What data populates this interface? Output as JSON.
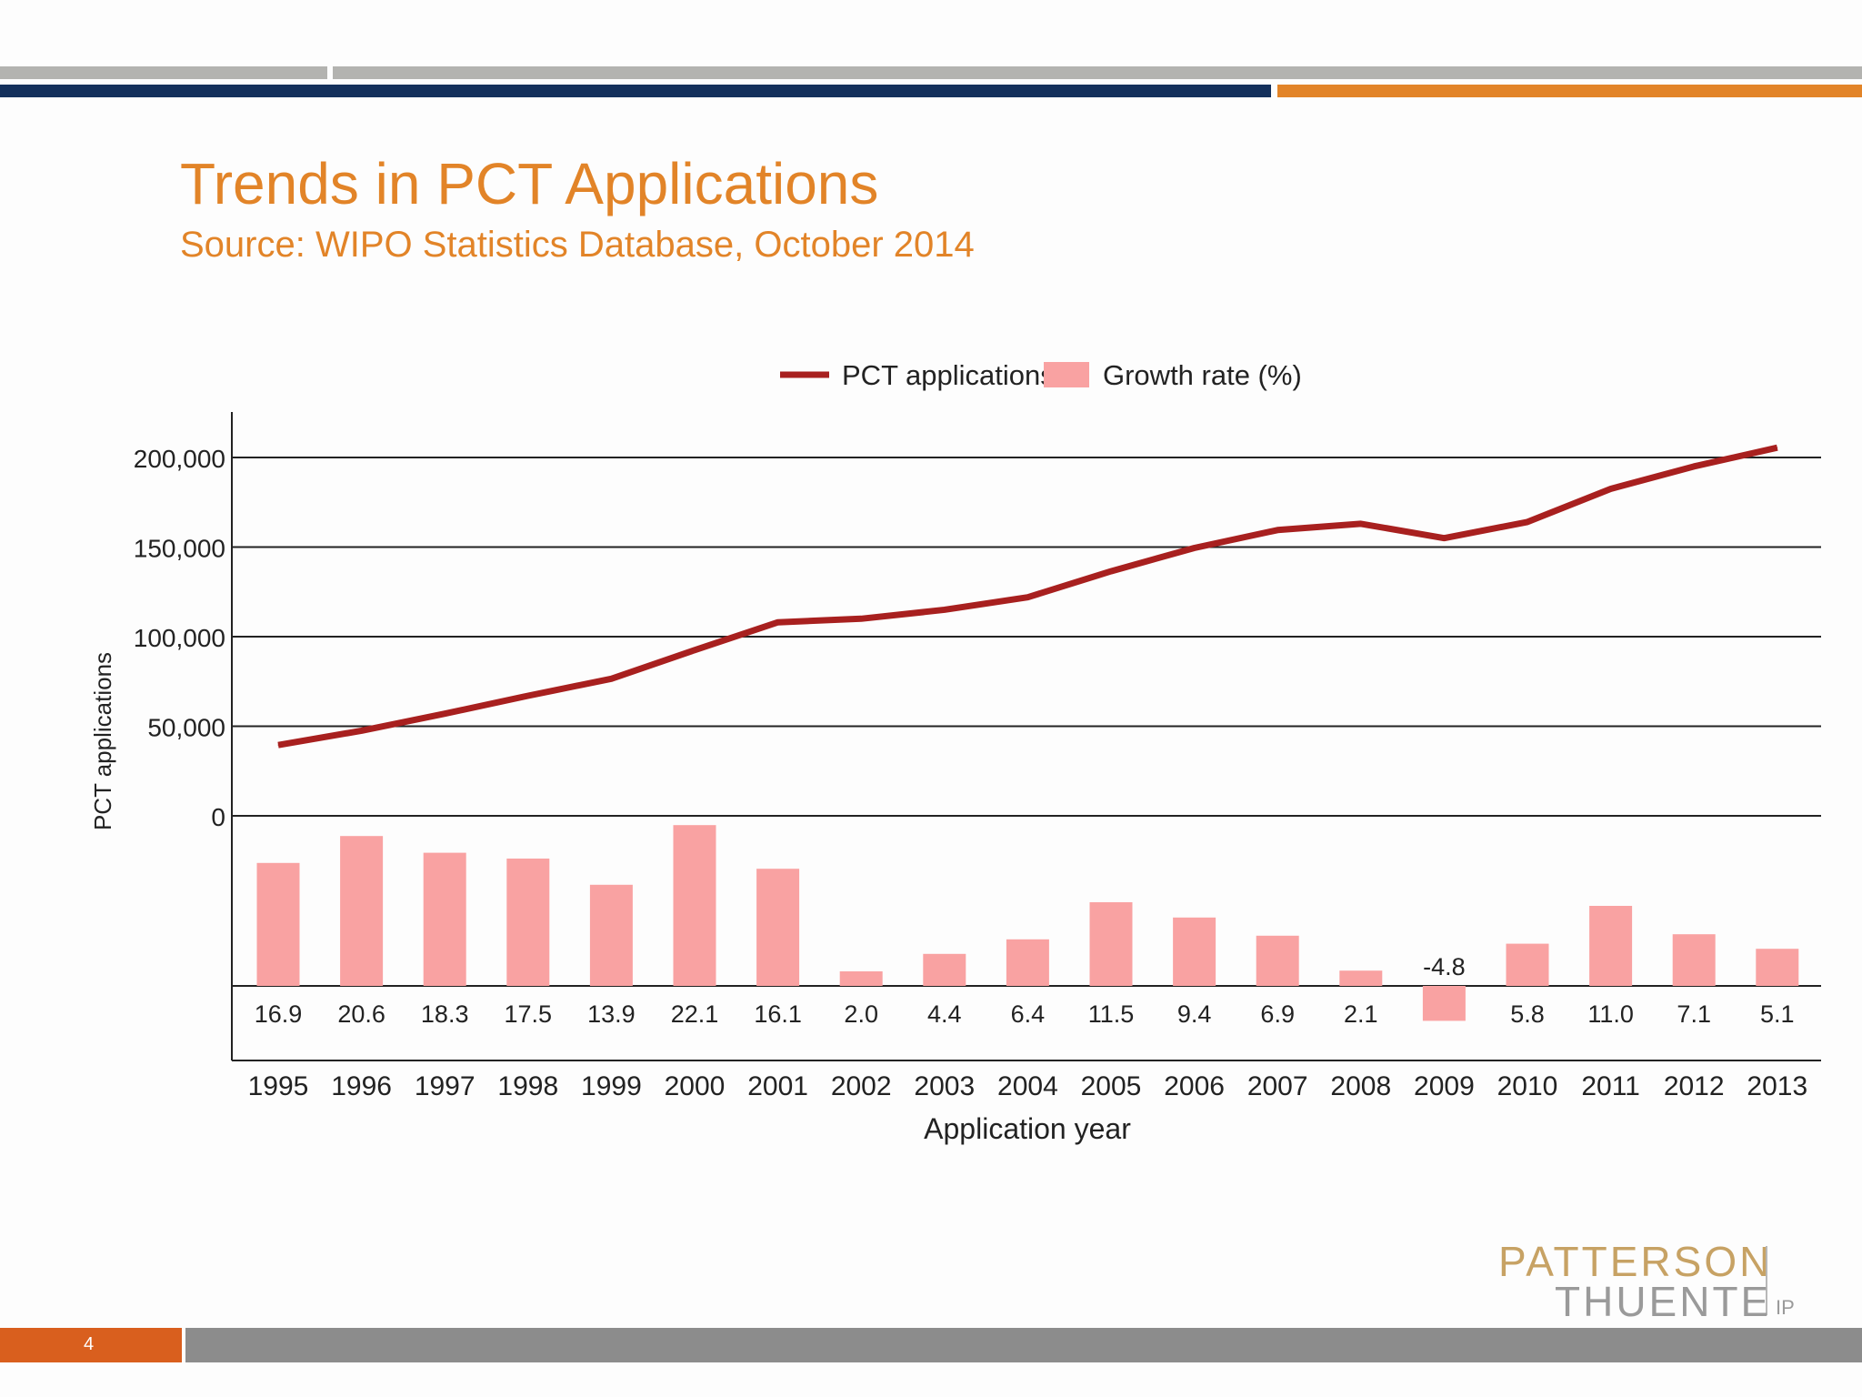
{
  "slide": {
    "title": "Trends in PCT Applications",
    "subtitle": "Source:  WIPO Statistics Database, October 2014",
    "slide_number": "4",
    "logo_line1": "PATTERSON",
    "logo_line2": "THUENTE",
    "logo_suffix": "IP"
  },
  "colors": {
    "accent_orange": "#e28428",
    "accent_navy": "#14305c",
    "line_series": "#a8201f",
    "bar_series": "#f9a2a2",
    "top_gray": "#b3b3b0"
  },
  "chart_data": {
    "type": "bar+line",
    "xlabel": "Application year",
    "ylabel": "PCT applications",
    "categories": [
      "1995",
      "1996",
      "1997",
      "1998",
      "1999",
      "2000",
      "2001",
      "2002",
      "2003",
      "2004",
      "2005",
      "2006",
      "2007",
      "2008",
      "2009",
      "2010",
      "2011",
      "2012",
      "2013"
    ],
    "y_ticks": [
      "0",
      "50,000",
      "100,000",
      "150,000",
      "200,000"
    ],
    "ylim": [
      0,
      210000
    ],
    "grid": "horizontal",
    "legend_placement": "top-center",
    "series": [
      {
        "name": "PCT applications",
        "type": "line",
        "values": [
          39500,
          47500,
          57000,
          67000,
          76500,
          92500,
          108000,
          110000,
          115000,
          122000,
          136500,
          149500,
          159500,
          163000,
          155000,
          164000,
          182500,
          195000,
          205500
        ]
      },
      {
        "name": "Growth rate (%)",
        "type": "bar",
        "values": [
          16.9,
          20.6,
          18.3,
          17.5,
          13.9,
          22.1,
          16.1,
          2.0,
          4.4,
          6.4,
          11.5,
          9.4,
          6.9,
          2.1,
          -4.8,
          5.8,
          11.0,
          7.1,
          5.1
        ],
        "labels": [
          "16.9",
          "20.6",
          "18.3",
          "17.5",
          "13.9",
          "22.1",
          "16.1",
          "2.0",
          "4.4",
          "6.4",
          "11.5",
          "9.4",
          "6.9",
          "2.1",
          "-4.8",
          "5.8",
          "11.0",
          "7.1",
          "5.1"
        ]
      }
    ]
  }
}
